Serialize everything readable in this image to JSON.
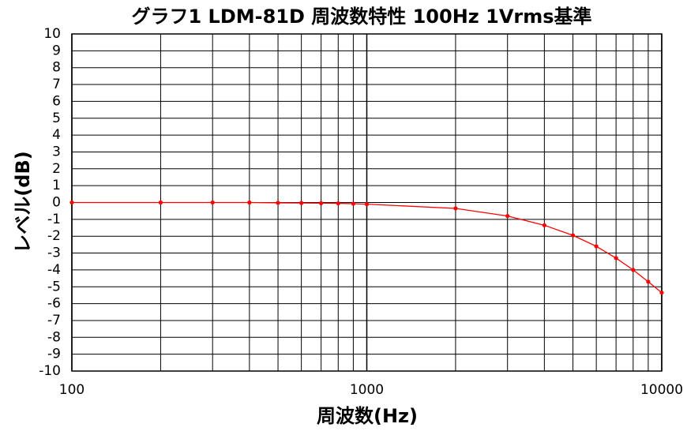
{
  "chart_data": {
    "type": "line",
    "title": "グラフ1  LDM-81D 周波数特性  100Hz 1Vrms基準",
    "x_label": "周波数(Hz)",
    "y_label": "レベル(dB)",
    "x": [
      100,
      200,
      300,
      400,
      500,
      600,
      700,
      800,
      900,
      1000,
      2000,
      3000,
      4000,
      5000,
      6000,
      7000,
      8000,
      9000,
      10000
    ],
    "series": [
      {
        "name": "LDM-81D",
        "color": "#ff0000",
        "values": [
          0,
          0,
          0,
          0,
          -0.02,
          -0.03,
          -0.04,
          -0.05,
          -0.07,
          -0.1,
          -0.35,
          -0.8,
          -1.35,
          -1.95,
          -2.6,
          -3.3,
          -4.0,
          -4.7,
          -5.35
        ]
      }
    ],
    "x_log": true,
    "xlim": [
      100,
      10000
    ],
    "xticks": [
      100,
      1000,
      10000
    ],
    "ylim": [
      -10,
      10
    ],
    "yticks": [
      -10,
      -9,
      -8,
      -7,
      -6,
      -5,
      -4,
      -3,
      -2,
      -1,
      0,
      1,
      2,
      3,
      4,
      5,
      6,
      7,
      8,
      9,
      10
    ],
    "grid": true
  }
}
